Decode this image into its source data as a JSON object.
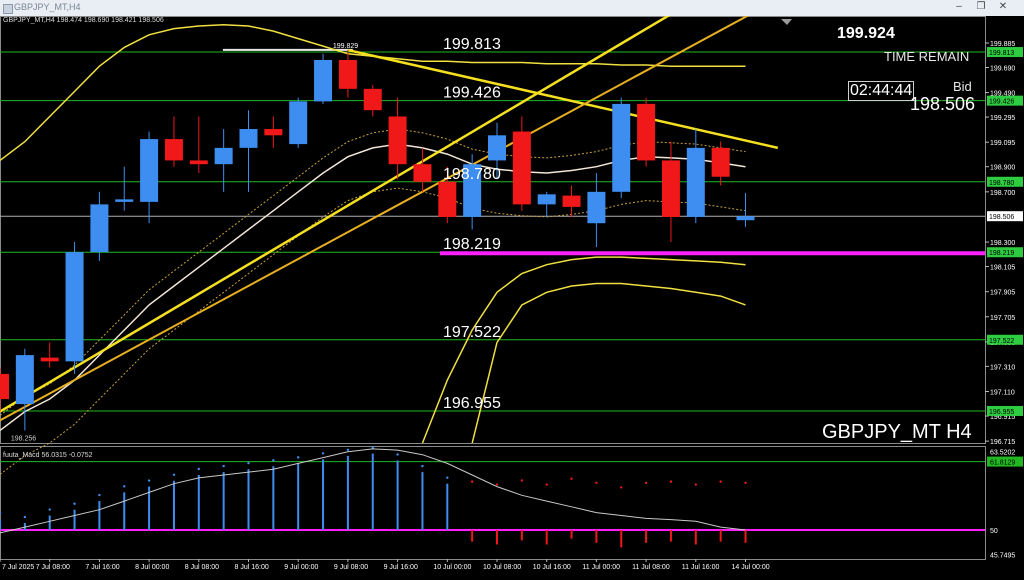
{
  "window": {
    "title": "GBPJPY_MT,H4",
    "buttons": [
      "–",
      "❐",
      "✕"
    ]
  },
  "header": {
    "info": "GBPJPY_MT,H4  198.474 198.690 198.421 198.506"
  },
  "overlay": {
    "top_price": "199.924",
    "time_remain_label": "TIME REMAIN",
    "countdown": "02:44:44",
    "bid_label": "Bid",
    "bid_value": "198.506",
    "symbol_label": "GBPJPY_MT H4",
    "high_label": "199.829",
    "low_label": "198.256"
  },
  "level_labels": [
    "199.813",
    "199.426",
    "198.780",
    "198.219",
    "197.522",
    "196.955"
  ],
  "price_axis": {
    "ticks": [
      "199.885",
      "199.690",
      "199.490",
      "199.295",
      "199.095",
      "198.900",
      "198.700",
      "198.300",
      "198.105",
      "197.905",
      "197.705",
      "197.505",
      "197.310",
      "197.110",
      "196.915",
      "196.715"
    ],
    "boxes": [
      {
        "text": "199.813",
        "color": "#2ecc40"
      },
      {
        "text": "199.426",
        "color": "#2ecc40"
      },
      {
        "text": "198.780",
        "color": "#2ecc40"
      },
      {
        "text": "198.506",
        "color": "#ffffff"
      },
      {
        "text": "198.219",
        "color": "#2ecc40"
      },
      {
        "text": "197.522",
        "color": "#2ecc40"
      },
      {
        "text": "196.955",
        "color": "#2ecc40"
      }
    ]
  },
  "macd": {
    "label": "fuuta_Macd 56.0315  -0.0752",
    "axis_labels": [
      "63.5202",
      "61.8129",
      "50",
      "45.7495"
    ]
  },
  "time_axis": [
    "7 Jul 2025",
    "7 Jul 08:00",
    "7 Jul 16:00",
    "8 Jul 00:00",
    "8 Jul 08:00",
    "8 Jul 16:00",
    "9 Jul 00:00",
    "9 Jul 08:00",
    "9 Jul 16:00",
    "10 Jul 00:00",
    "10 Jul 08:00",
    "10 Jul 16:00",
    "11 Jul 00:00",
    "11 Jul 08:00",
    "11 Jul 16:00",
    "14 Jul 00:00"
  ],
  "colors": {
    "bull": "#3d8ef0",
    "bear": "#f01818",
    "level": "#22b822",
    "band": "#f0e040",
    "trend": "#f5e020",
    "support": "#ff20ff",
    "background": "#000000"
  },
  "chart_data": {
    "type": "candlestick",
    "symbol": "GBPJPY_MT",
    "timeframe": "H4",
    "last": {
      "open": 198.474,
      "high": 198.69,
      "low": 198.421,
      "close": 198.506
    },
    "candles": [
      {
        "t": "7 Jul 00:00",
        "o": 197.25,
        "h": 197.3,
        "l": 196.95,
        "c": 197.05
      },
      {
        "t": "7 Jul 04:00",
        "o": 197.01,
        "h": 197.45,
        "l": 196.8,
        "c": 197.4
      },
      {
        "t": "7 Jul 08:00",
        "o": 197.38,
        "h": 197.5,
        "l": 197.3,
        "c": 197.35
      },
      {
        "t": "7 Jul 12:00",
        "o": 197.35,
        "h": 198.3,
        "l": 197.25,
        "c": 198.22
      },
      {
        "t": "7 Jul 16:00",
        "o": 198.22,
        "h": 198.7,
        "l": 198.15,
        "c": 198.6
      },
      {
        "t": "7 Jul 20:00",
        "o": 198.62,
        "h": 198.9,
        "l": 198.55,
        "c": 198.64
      },
      {
        "t": "8 Jul 00:00",
        "o": 198.62,
        "h": 199.18,
        "l": 198.45,
        "c": 199.12
      },
      {
        "t": "8 Jul 04:00",
        "o": 199.12,
        "h": 199.3,
        "l": 198.9,
        "c": 198.95
      },
      {
        "t": "8 Jul 08:00",
        "o": 198.95,
        "h": 199.3,
        "l": 198.85,
        "c": 198.92
      },
      {
        "t": "8 Jul 12:00",
        "o": 198.92,
        "h": 199.2,
        "l": 198.7,
        "c": 199.05
      },
      {
        "t": "8 Jul 16:00",
        "o": 199.05,
        "h": 199.35,
        "l": 198.7,
        "c": 199.2
      },
      {
        "t": "8 Jul 20:00",
        "o": 199.2,
        "h": 199.3,
        "l": 199.05,
        "c": 199.15
      },
      {
        "t": "9 Jul 00:00",
        "o": 199.08,
        "h": 199.45,
        "l": 199.05,
        "c": 199.42
      },
      {
        "t": "9 Jul 04:00",
        "o": 199.42,
        "h": 199.8,
        "l": 199.4,
        "c": 199.75
      },
      {
        "t": "9 Jul 08:00",
        "o": 199.75,
        "h": 199.83,
        "l": 199.45,
        "c": 199.52
      },
      {
        "t": "9 Jul 12:00",
        "o": 199.52,
        "h": 199.55,
        "l": 199.3,
        "c": 199.35
      },
      {
        "t": "9 Jul 16:00",
        "o": 199.3,
        "h": 199.45,
        "l": 198.8,
        "c": 198.92
      },
      {
        "t": "9 Jul 20:00",
        "o": 198.92,
        "h": 199.05,
        "l": 198.7,
        "c": 198.78
      },
      {
        "t": "10 Jul 00:00",
        "o": 198.78,
        "h": 198.9,
        "l": 198.45,
        "c": 198.5
      },
      {
        "t": "10 Jul 04:00",
        "o": 198.5,
        "h": 199.0,
        "l": 198.4,
        "c": 198.92
      },
      {
        "t": "10 Jul 08:00",
        "o": 198.95,
        "h": 199.25,
        "l": 198.8,
        "c": 199.15
      },
      {
        "t": "10 Jul 12:00",
        "o": 199.18,
        "h": 199.3,
        "l": 198.55,
        "c": 198.6
      },
      {
        "t": "10 Jul 16:00",
        "o": 198.6,
        "h": 198.7,
        "l": 198.5,
        "c": 198.68
      },
      {
        "t": "10 Jul 20:00",
        "o": 198.67,
        "h": 198.75,
        "l": 198.5,
        "c": 198.58
      },
      {
        "t": "11 Jul 00:00",
        "o": 198.45,
        "h": 198.85,
        "l": 198.26,
        "c": 198.7
      },
      {
        "t": "11 Jul 04:00",
        "o": 198.7,
        "h": 199.45,
        "l": 198.65,
        "c": 199.4
      },
      {
        "t": "11 Jul 08:00",
        "o": 199.4,
        "h": 199.45,
        "l": 198.9,
        "c": 198.95
      },
      {
        "t": "11 Jul 12:00",
        "o": 198.95,
        "h": 199.1,
        "l": 198.3,
        "c": 198.5
      },
      {
        "t": "11 Jul 16:00",
        "o": 198.5,
        "h": 199.2,
        "l": 198.45,
        "c": 199.05
      },
      {
        "t": "11 Jul 20:00",
        "o": 199.05,
        "h": 199.1,
        "l": 198.75,
        "c": 198.82
      },
      {
        "t": "14 Jul 00:00",
        "o": 198.474,
        "h": 198.69,
        "l": 198.421,
        "c": 198.506
      }
    ],
    "horizontal_levels": [
      199.813,
      199.426,
      198.78,
      198.219,
      197.522,
      196.955
    ],
    "support_level": 198.219,
    "y_range": [
      196.7,
      200.1
    ],
    "macd_range": [
      45.0,
      64.5
    ],
    "macd_signal_level": 61.8129,
    "macd_zero": 50,
    "macd_hist": [
      51.8,
      51.2,
      52.5,
      53.5,
      55.0,
      56.5,
      57.5,
      58.5,
      59.5,
      60.0,
      60.5,
      61.0,
      61.5,
      62.2,
      62.8,
      63.2,
      62.0,
      60.0,
      58.0,
      48.0,
      47.5,
      48.2,
      47.5,
      48.5,
      47.8,
      47.0,
      47.8,
      48.0,
      47.5,
      48.0,
      47.8
    ],
    "macd_line": [
      49.5,
      50.5,
      51.5,
      52.5,
      53.5,
      55.0,
      56.5,
      58.0,
      59.0,
      59.5,
      60.0,
      60.5,
      61.5,
      62.5,
      63.5,
      64.0,
      63.8,
      63.0,
      61.5,
      59.5,
      57.5,
      56.0,
      55.0,
      54.0,
      53.0,
      52.5,
      52.0,
      51.8,
      51.5,
      50.5,
      50.0
    ],
    "bands_outer_upper": [
      198.95,
      199.1,
      199.3,
      199.5,
      199.7,
      199.85,
      199.95,
      200.0,
      200.02,
      200.03,
      200.02,
      199.98,
      199.92,
      199.86,
      199.8,
      199.78,
      199.76,
      199.74,
      199.74,
      199.73,
      199.73,
      199.73,
      199.72,
      199.72,
      199.72,
      199.71,
      199.71,
      199.7,
      199.7,
      199.7,
      199.7
    ],
    "bands_outer_lower": [
      null,
      null,
      null,
      null,
      null,
      null,
      null,
      null,
      null,
      null,
      null,
      null,
      null,
      null,
      null,
      null,
      null,
      196.7,
      197.2,
      197.6,
      197.9,
      198.05,
      198.12,
      198.16,
      198.18,
      198.18,
      198.17,
      198.16,
      198.15,
      198.14,
      198.12
    ],
    "bands_mid": [
      196.8,
      196.95,
      197.05,
      197.2,
      197.4,
      197.6,
      197.8,
      197.95,
      198.1,
      198.25,
      198.4,
      198.55,
      198.7,
      198.85,
      198.98,
      199.05,
      199.08,
      199.05,
      199.0,
      198.92,
      198.88,
      198.86,
      198.85,
      198.87,
      198.9,
      198.95,
      198.98,
      198.97,
      198.96,
      198.93,
      198.9
    ],
    "bands_inner_lower": [
      null,
      null,
      null,
      null,
      null,
      null,
      null,
      null,
      null,
      null,
      null,
      null,
      null,
      null,
      null,
      null,
      null,
      null,
      null,
      196.7,
      197.5,
      197.8,
      197.9,
      197.95,
      197.97,
      197.97,
      197.95,
      197.93,
      197.9,
      197.87,
      197.8
    ],
    "trendlines": [
      {
        "from": {
          "t": "7 Jul 00:00",
          "v": 196.95
        },
        "to": {
          "t": "14 Jul 00:00",
          "v": 200.3
        }
      },
      {
        "from": {
          "t": "9 Jul 08:00",
          "v": 199.829
        },
        "to": {
          "t": "14 Jul 00:00",
          "v": 199.05
        }
      }
    ]
  }
}
